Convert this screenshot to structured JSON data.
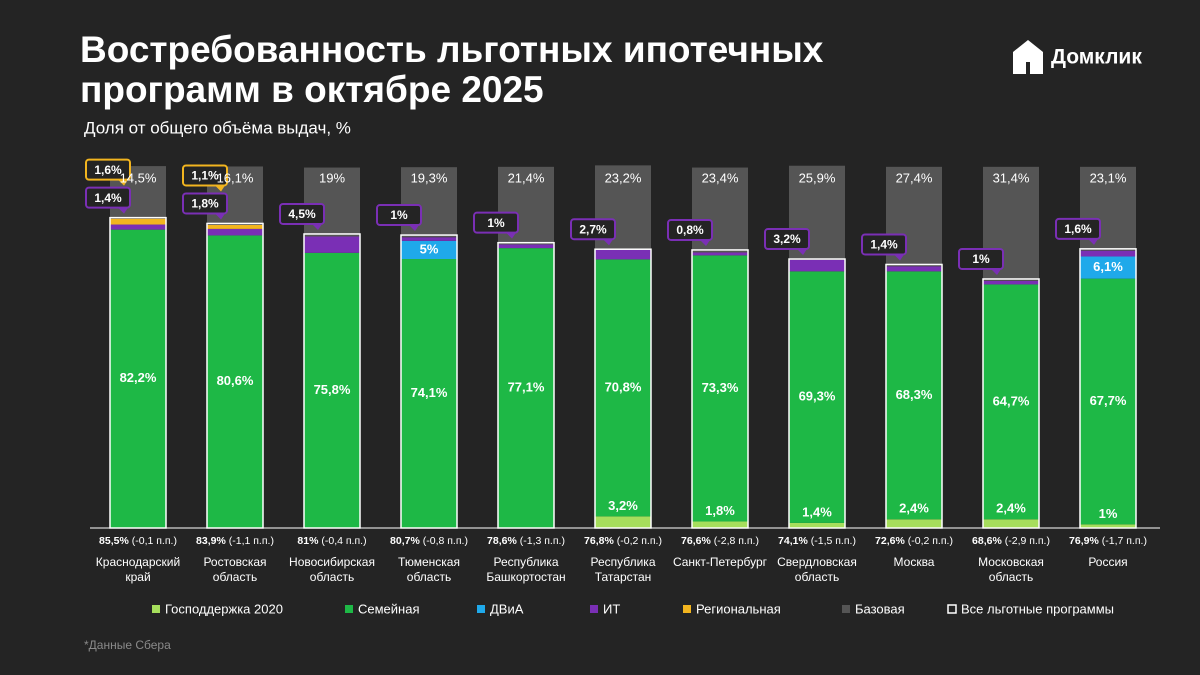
{
  "brand": "Домклик",
  "chart_data": {
    "type": "stacked-bar",
    "title": [
      "Востребованность льготных ипотечных",
      "программ в октябре 2025"
    ],
    "subtitle": "Доля от общего объёма выдач, %",
    "footnote": "*Данные Сбера",
    "categories": [
      [
        "Краснодарский",
        "край"
      ],
      [
        "Ростовская",
        "область"
      ],
      [
        "Новосибирская",
        "область"
      ],
      [
        "Тюменская",
        "область"
      ],
      [
        "Республика",
        "Башкортостан"
      ],
      [
        "Республика",
        "Татарстан"
      ],
      [
        "Санкт-Петербург"
      ],
      [
        "Свердловская",
        "область"
      ],
      [
        "Москва"
      ],
      [
        "Московская",
        "область"
      ],
      [
        "Россия"
      ]
    ],
    "ylim": [
      0,
      100
    ],
    "series": [
      {
        "name": "Господдержка 2020",
        "color": "#a6de5c",
        "values": [
          null,
          null,
          null,
          null,
          null,
          3.2,
          1.8,
          1.4,
          2.4,
          2.4,
          1
        ],
        "value_labels": [
          null,
          null,
          null,
          null,
          null,
          "3,2%",
          "1,8%",
          "1,4%",
          "2,4%",
          "2,4%",
          "1%"
        ]
      },
      {
        "name": "Семейная",
        "color": "#1eb846",
        "values": [
          82.2,
          80.6,
          75.8,
          74.1,
          77.1,
          70.8,
          73.3,
          69.3,
          68.3,
          64.7,
          67.7
        ],
        "value_labels": [
          "82,2%",
          "80,6%",
          "75,8%",
          "74,1%",
          "77,1%",
          "70,8%",
          "73,3%",
          "69,3%",
          "68,3%",
          "64,7%",
          "67,7%"
        ]
      },
      {
        "name": "ДВиА",
        "color": "#1fa9ea",
        "values": [
          null,
          null,
          null,
          5,
          null,
          null,
          null,
          null,
          null,
          null,
          6.1
        ],
        "value_labels": [
          null,
          null,
          null,
          "5%",
          null,
          null,
          null,
          null,
          null,
          null,
          "6,1%"
        ]
      },
      {
        "name": "ИТ",
        "color": "#7a2fb5",
        "values": [
          1.4,
          1.8,
          4.5,
          1,
          1,
          2.7,
          0.8,
          3.2,
          1.4,
          1,
          1.6
        ],
        "value_labels": [
          "1,4%",
          "1,8%",
          "4,5%",
          "1%",
          "1%",
          "2,7%",
          "0,8%",
          "3,2%",
          "1,4%",
          "1%",
          "1,6%"
        ]
      },
      {
        "name": "Региональная",
        "color": "#f2b51f",
        "values": [
          1.6,
          1.1,
          null,
          null,
          null,
          null,
          null,
          null,
          null,
          null,
          null
        ],
        "value_labels": [
          "1,6%",
          "1,1%",
          null,
          null,
          null,
          null,
          null,
          null,
          null,
          null,
          null
        ]
      },
      {
        "name": "Базовая",
        "color": "#555555",
        "values": [
          14.5,
          16.1,
          19,
          19.3,
          21.4,
          23.2,
          23.4,
          25.9,
          27.4,
          31.4,
          23.1
        ],
        "value_labels": [
          "14,5%",
          "16,1%",
          "19%",
          "19,3%",
          "21,4%",
          "23,2%",
          "23,4%",
          "25,9%",
          "27,4%",
          "31,4%",
          "23,1%"
        ]
      }
    ],
    "total": {
      "name": "Все льготные программы",
      "color": "#ffffff",
      "values": [
        85.5,
        83.9,
        81,
        80.7,
        78.6,
        76.8,
        76.6,
        74.1,
        72.6,
        68.6,
        76.9
      ],
      "value_labels": [
        "85,5%",
        "83,9%",
        "81%",
        "80,7%",
        "78,6%",
        "76,8%",
        "76,6%",
        "74,1%",
        "72,6%",
        "68,6%",
        "76,9%"
      ],
      "changes": [
        -0.1,
        -1.1,
        -0.4,
        -0.8,
        -1.3,
        -0.2,
        -2.8,
        -1.5,
        -0.2,
        -2.9,
        -1.7
      ],
      "change_labels": [
        "(-0,1 п.п.)",
        "(-1,1 п.п.)",
        "(-0,4 п.п.)",
        "(-0,8 п.п.)",
        "(-1,3 п.п.)",
        "(-0,2 п.п.)",
        "(-2,8 п.п.)",
        "(-1,5 п.п.)",
        "(-0,2 п.п.)",
        "(-2,9 п.п.)",
        "(-1,7 п.п.)"
      ]
    }
  }
}
